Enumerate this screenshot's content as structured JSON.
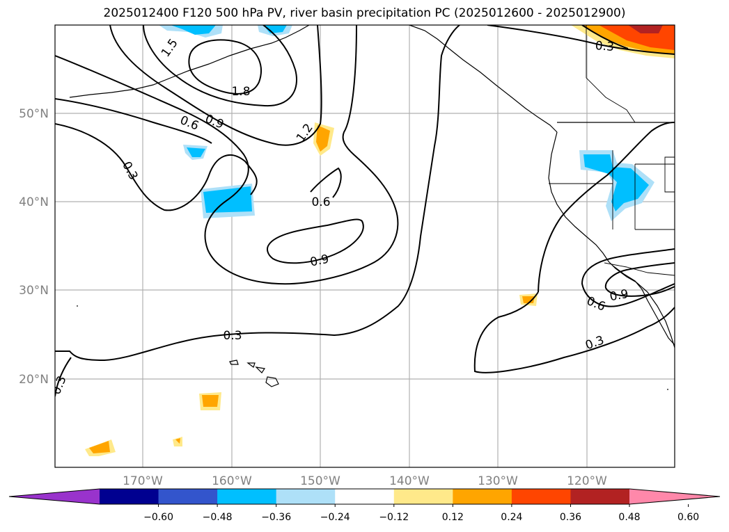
{
  "title": "2025012400 F120 500 hPa PV, river basin precipitation PC (2025012600 - 2025012900)",
  "map": {
    "lat_labels": [
      "50°N",
      "40°N",
      "30°N",
      "20°N"
    ],
    "lon_labels": [
      "170°W",
      "160°W",
      "150°W",
      "140°W",
      "130°W",
      "120°W"
    ],
    "contour_labels": [
      "1.5",
      "1.8",
      "0.6",
      "0.9",
      "1.2",
      "0.3",
      "0.6",
      "0.9",
      "0.3",
      "0.3",
      "0.6",
      "0.9",
      "0.3",
      "0.3"
    ]
  },
  "colorbar": {
    "ticks": [
      "−0.60",
      "−0.48",
      "−0.36",
      "−0.24",
      "−0.12",
      "0.12",
      "0.24",
      "0.36",
      "0.48",
      "0.60"
    ],
    "colors": [
      "#9933cc",
      "#000090",
      "#3355cc",
      "#00bfff",
      "#aee0f8",
      "#ffffff",
      "#ffe98a",
      "#ffa500",
      "#ff4500",
      "#b22222",
      "#ff88aa"
    ]
  }
}
